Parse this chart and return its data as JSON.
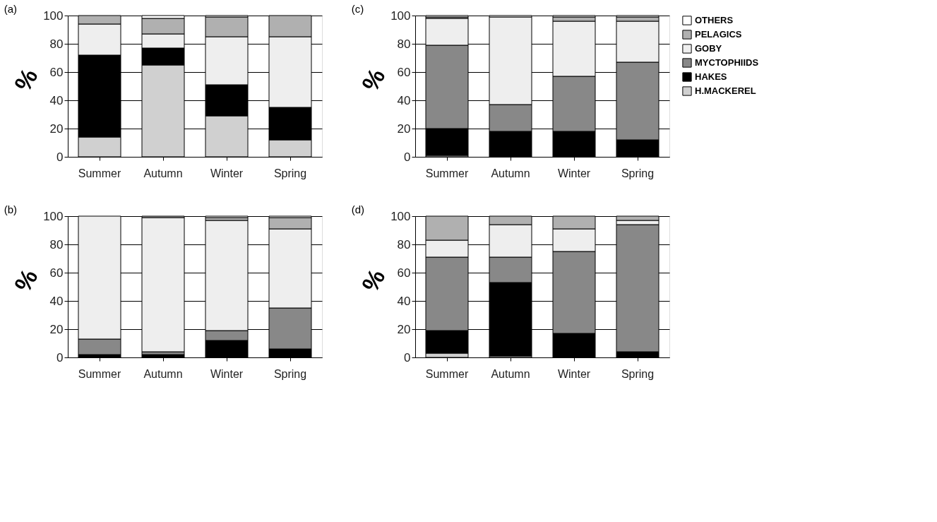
{
  "chart_data": [
    {
      "type": "bar",
      "stacked": true,
      "title": "(a)",
      "ylabel": "%",
      "categories": [
        "Summer",
        "Autumn",
        "Winter",
        "Spring"
      ],
      "ylim": [
        0,
        100
      ],
      "yticks": [
        0,
        20,
        40,
        60,
        80,
        100
      ],
      "grid": "y",
      "series": [
        {
          "color": "#d0d0d0",
          "values": [
            14,
            65,
            29,
            12
          ]
        },
        {
          "color": "#000000",
          "values": [
            58,
            12,
            22,
            23
          ]
        },
        {
          "color": "#888888",
          "values": [
            0,
            0,
            0,
            0
          ]
        },
        {
          "color": "#eeeeee",
          "values": [
            22,
            10,
            34,
            50
          ]
        },
        {
          "color": "#b0b0b0",
          "values": [
            6,
            11,
            14,
            15
          ]
        },
        {
          "color": "#ffffff",
          "values": [
            0,
            2,
            1,
            0
          ]
        }
      ]
    },
    {
      "type": "bar",
      "stacked": true,
      "title": "(c)",
      "ylabel": "%",
      "categories": [
        "Summer",
        "Autumn",
        "Winter",
        "Spring"
      ],
      "ylim": [
        0,
        100
      ],
      "yticks": [
        0,
        20,
        40,
        60,
        80,
        100
      ],
      "grid": "y",
      "legend": "right",
      "series": [
        {
          "name": "H.MACKEREL",
          "color": "#d0d0d0",
          "values": [
            1,
            0,
            0,
            0
          ]
        },
        {
          "name": "HAKES",
          "color": "#000000",
          "values": [
            19,
            18,
            18,
            12
          ]
        },
        {
          "name": "MYCTOPHIIDS",
          "color": "#888888",
          "values": [
            59,
            19,
            39,
            55
          ]
        },
        {
          "name": "GOBY",
          "color": "#eeeeee",
          "values": [
            19,
            62,
            39,
            29
          ]
        },
        {
          "name": "PELAGICS",
          "color": "#b0b0b0",
          "values": [
            1,
            0,
            3,
            3
          ]
        },
        {
          "name": "OTHERS",
          "color": "#ffffff",
          "values": [
            1,
            1,
            1,
            1
          ]
        }
      ]
    },
    {
      "type": "bar",
      "stacked": true,
      "title": "(b)",
      "ylabel": "%",
      "categories": [
        "Summer",
        "Autumn",
        "Winter",
        "Spring"
      ],
      "ylim": [
        0,
        100
      ],
      "yticks": [
        0,
        20,
        40,
        60,
        80,
        100
      ],
      "grid": "y",
      "series": [
        {
          "color": "#d0d0d0",
          "values": [
            0,
            0,
            0,
            0
          ]
        },
        {
          "color": "#000000",
          "values": [
            2,
            2,
            12,
            6
          ]
        },
        {
          "color": "#888888",
          "values": [
            11,
            2,
            7,
            29
          ]
        },
        {
          "color": "#eeeeee",
          "values": [
            87,
            95,
            78,
            56
          ]
        },
        {
          "color": "#b0b0b0",
          "values": [
            0,
            1,
            2,
            8
          ]
        },
        {
          "color": "#ffffff",
          "values": [
            0,
            0,
            1,
            1
          ]
        }
      ]
    },
    {
      "type": "bar",
      "stacked": true,
      "title": "(d)",
      "ylabel": "%",
      "categories": [
        "Summer",
        "Autumn",
        "Winter",
        "Spring"
      ],
      "ylim": [
        0,
        100
      ],
      "yticks": [
        0,
        20,
        40,
        60,
        80,
        100
      ],
      "grid": "y",
      "series": [
        {
          "color": "#d0d0d0",
          "values": [
            3,
            1,
            0,
            0
          ]
        },
        {
          "color": "#000000",
          "values": [
            16,
            52,
            17,
            4
          ]
        },
        {
          "color": "#888888",
          "values": [
            52,
            18,
            58,
            90
          ]
        },
        {
          "color": "#eeeeee",
          "values": [
            12,
            23,
            16,
            3
          ]
        },
        {
          "color": "#b0b0b0",
          "values": [
            17,
            6,
            9,
            3
          ]
        },
        {
          "color": "#ffffff",
          "values": [
            0,
            0,
            0,
            0
          ]
        }
      ]
    }
  ]
}
